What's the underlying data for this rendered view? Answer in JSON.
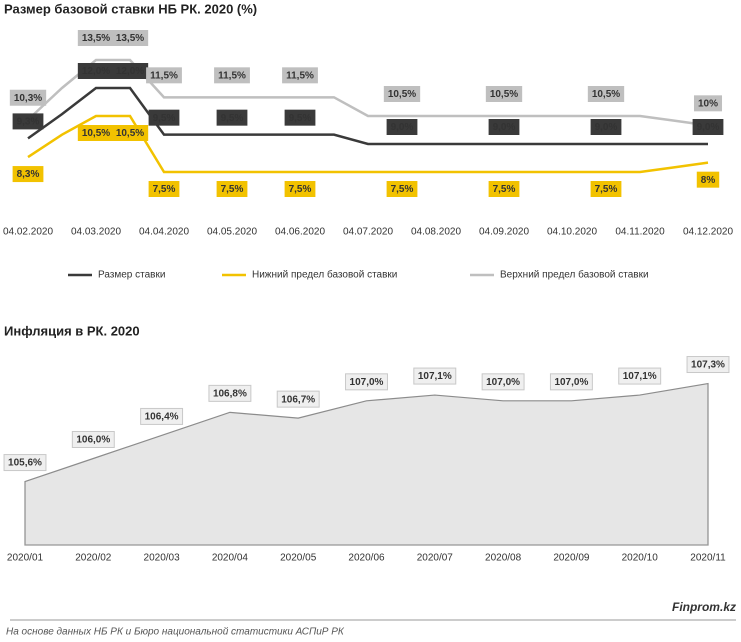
{
  "chart_data": [
    {
      "type": "line",
      "title": "Размер базовой ставки НБ РК. 2020 (%)",
      "categories": [
        "04.02.2020",
        null,
        "04.03.2020",
        null,
        "04.04.2020",
        null,
        "04.05.2020",
        null,
        "04.06.2020",
        null,
        "04.07.2020",
        null,
        "04.08.2020",
        null,
        "04.09.2020",
        null,
        "04.10.2020",
        null,
        "04.11.2020",
        null,
        "04.12.2020"
      ],
      "ylim": [
        6,
        15
      ],
      "series": [
        {
          "name": "Размер ставки",
          "color": "#3a3a3a",
          "values": [
            9.3,
            10.6,
            12.0,
            12.0,
            9.5,
            9.5,
            9.5,
            9.5,
            9.5,
            9.5,
            9.0,
            9.0,
            9.0,
            9.0,
            9.0,
            9.0,
            9.0,
            9.0,
            9.0,
            9.0,
            9.0
          ],
          "value_labels": [
            "9,3%",
            null,
            "12,0%",
            "12,0%",
            "9,5%",
            null,
            "9,5%",
            null,
            "9,5%",
            null,
            null,
            "9,0%",
            null,
            null,
            "9,0%",
            null,
            null,
            "9,0%",
            null,
            null,
            "9,0%"
          ]
        },
        {
          "name": "Нижний предел  базовой ставки",
          "color": "#f2c200",
          "values": [
            8.3,
            9.5,
            10.5,
            10.5,
            7.5,
            7.5,
            7.5,
            7.5,
            7.5,
            7.5,
            7.5,
            7.5,
            7.5,
            7.5,
            7.5,
            7.5,
            7.5,
            7.5,
            7.5,
            7.75,
            8.0
          ],
          "value_labels": [
            "8,3%",
            null,
            "10,5%",
            "10,5%",
            "7,5%",
            null,
            "7,5%",
            null,
            "7,5%",
            null,
            null,
            "7,5%",
            null,
            null,
            "7,5%",
            null,
            null,
            "7,5%",
            null,
            null,
            "8%"
          ]
        },
        {
          "name": "Верхний предел  базовой ставки",
          "color": "#bfbfbf",
          "values": [
            10.3,
            12.0,
            13.5,
            13.5,
            11.5,
            11.5,
            11.5,
            11.5,
            11.5,
            11.5,
            10.5,
            10.5,
            10.5,
            10.5,
            10.5,
            10.5,
            10.5,
            10.5,
            10.5,
            10.25,
            10.0
          ],
          "value_labels": [
            "10,3%",
            null,
            "13,5%",
            "13,5%",
            "11,5%",
            null,
            "11,5%",
            null,
            "11,5%",
            null,
            null,
            "10,5%",
            null,
            null,
            "10,5%",
            null,
            null,
            "10,5%",
            null,
            null,
            "10%"
          ]
        }
      ]
    },
    {
      "type": "area",
      "title": "Инфляция в РК. 2020",
      "color": "#e6e6e6",
      "categories": [
        "2020/01",
        "2020/02",
        "2020/03",
        "2020/04",
        "2020/05",
        "2020/06",
        "2020/07",
        "2020/08",
        "2020/09",
        "2020/10",
        "2020/11"
      ],
      "values": [
        105.6,
        106.0,
        106.4,
        106.8,
        106.7,
        107.0,
        107.1,
        107.0,
        107.0,
        107.1,
        107.3
      ],
      "value_labels": [
        "105,6%",
        "106,0%",
        "106,4%",
        "106,8%",
        "106,7%",
        "107,0%",
        "107,1%",
        "107,0%",
        "107,0%",
        "107,1%",
        "107,3%"
      ],
      "ylim": [
        104.5,
        107.5
      ]
    }
  ],
  "footer": {
    "source": "На основе данных  НБ РК и Бюро национальной  статистики АСПиР РК",
    "brand": "Finprom.kz"
  }
}
